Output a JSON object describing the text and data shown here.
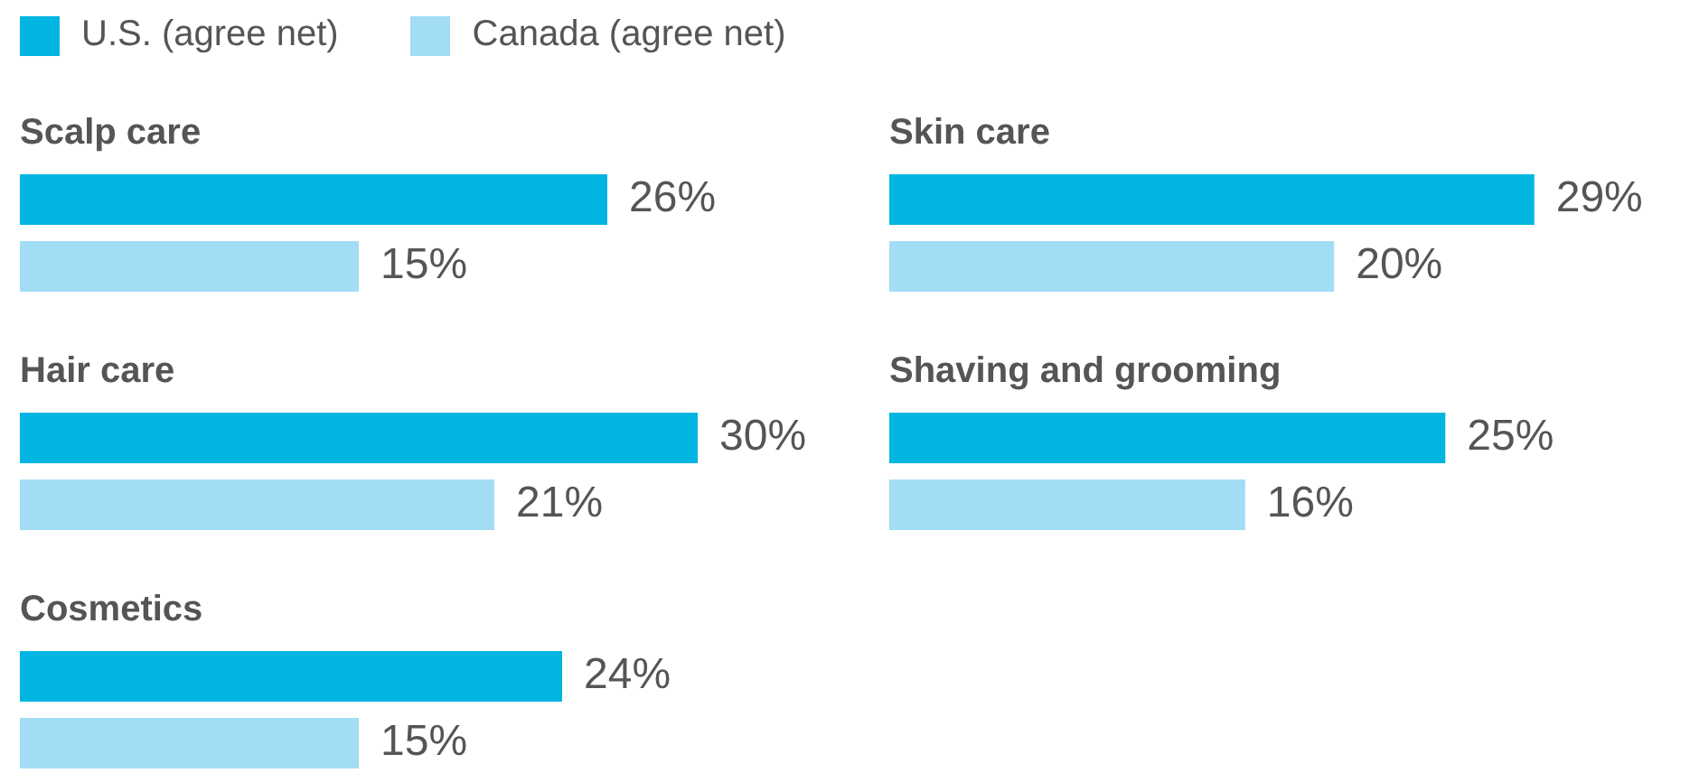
{
  "chart_data": [
    {
      "type": "bar",
      "orientation": "horizontal",
      "title": "Scalp care",
      "categories": [
        null
      ],
      "legend": "top",
      "series": [
        {
          "name": "U.S. (agree net)",
          "color": "#00b5e2",
          "values": [
            26
          ],
          "value_labels": [
            "26%"
          ]
        },
        {
          "name": "Canada (agree net)",
          "color": "#a3dcf5",
          "values": [
            15
          ],
          "value_labels": [
            "15%"
          ]
        }
      ]
    },
    {
      "type": "bar",
      "orientation": "horizontal",
      "title": "Skin care",
      "categories": [
        null
      ],
      "series": [
        {
          "color": "#00b5e2",
          "values": [
            29
          ],
          "value_labels": [
            "29%"
          ]
        },
        {
          "color": "#a3dcf5",
          "values": [
            20
          ],
          "value_labels": [
            "20%"
          ]
        }
      ]
    },
    {
      "type": "bar",
      "orientation": "horizontal",
      "title": "Hair care",
      "categories": [
        null
      ],
      "series": [
        {
          "color": "#00b5e2",
          "values": [
            30
          ],
          "value_labels": [
            "30%"
          ]
        },
        {
          "color": "#a3dcf5",
          "values": [
            21
          ],
          "value_labels": [
            "21%"
          ]
        }
      ]
    },
    {
      "type": "bar",
      "orientation": "horizontal",
      "title": "Shaving and grooming",
      "categories": [
        null
      ],
      "series": [
        {
          "color": "#00b5e2",
          "values": [
            25
          ],
          "value_labels": [
            "25%"
          ]
        },
        {
          "color": "#a3dcf5",
          "values": [
            16
          ],
          "value_labels": [
            "16%"
          ]
        }
      ]
    },
    {
      "type": "bar",
      "orientation": "horizontal",
      "title": "Cosmetics",
      "categories": [
        null
      ],
      "series": [
        {
          "color": "#00b5e2",
          "values": [
            24
          ],
          "value_labels": [
            "24%"
          ]
        },
        {
          "color": "#a3dcf5",
          "values": [
            15
          ],
          "value_labels": [
            "15%"
          ]
        }
      ]
    }
  ]
}
